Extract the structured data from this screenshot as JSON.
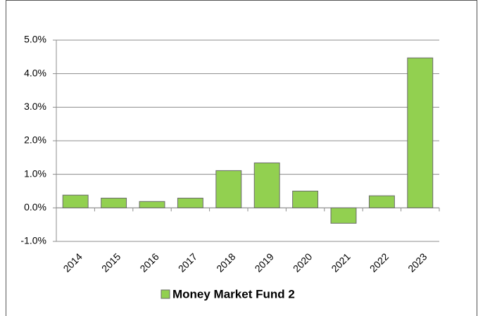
{
  "chart_data": {
    "type": "bar",
    "categories": [
      "2014",
      "2015",
      "2016",
      "2017",
      "2018",
      "2019",
      "2020",
      "2021",
      "2022",
      "2023"
    ],
    "series": [
      {
        "name": "Money Market Fund 2",
        "color": "#92d050",
        "values": [
          0.38,
          0.29,
          0.19,
          0.29,
          1.11,
          1.34,
          0.5,
          -0.46,
          0.36,
          4.47
        ]
      }
    ],
    "ylim": [
      -1,
      5
    ],
    "yticks": [
      {
        "value": -1,
        "label": "-1.0%"
      },
      {
        "value": 0,
        "label": "0.0%"
      },
      {
        "value": 1,
        "label": "1.0%"
      },
      {
        "value": 2,
        "label": "2.0%"
      },
      {
        "value": 3,
        "label": "3.0%"
      },
      {
        "value": 4,
        "label": "4.0%"
      },
      {
        "value": 5,
        "label": "5.0%"
      }
    ],
    "grid": true,
    "legend": "bottom"
  }
}
